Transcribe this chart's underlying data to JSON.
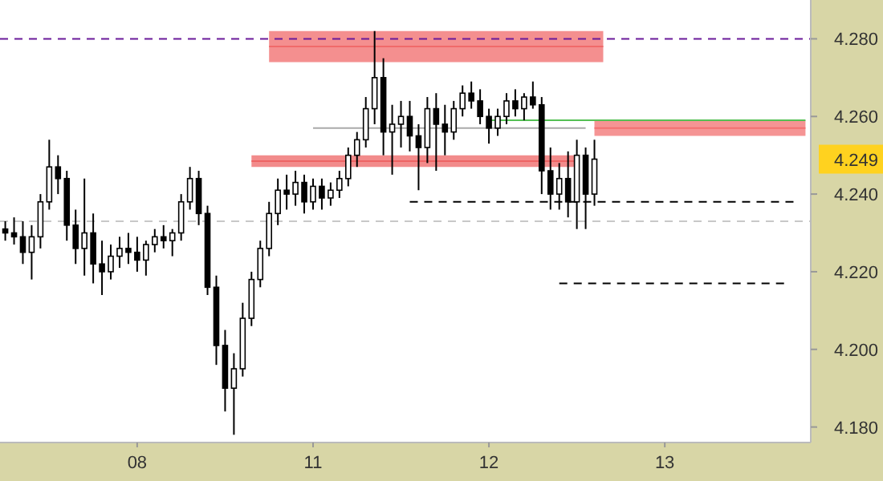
{
  "chart_data": {
    "type": "candlestick",
    "categories": [
      null,
      null,
      null,
      null,
      null,
      null,
      null,
      null,
      null,
      null,
      null,
      null,
      null,
      null,
      null,
      "08",
      null,
      null,
      null,
      null,
      null,
      null,
      null,
      null,
      null,
      null,
      null,
      null,
      null,
      null,
      null,
      null,
      null,
      null,
      null,
      "11",
      null,
      null,
      null,
      null,
      null,
      null,
      null,
      null,
      null,
      null,
      null,
      null,
      null,
      null,
      null,
      null,
      null,
      null,
      null,
      "12",
      null,
      null,
      null,
      null,
      null,
      null,
      null,
      null,
      null,
      null,
      null,
      null,
      null,
      null,
      null,
      null,
      null,
      null,
      null,
      "13",
      null,
      null,
      null,
      null,
      null,
      null,
      null,
      null,
      null,
      null,
      null,
      null,
      null,
      null,
      null,
      null
    ],
    "ohlc": [
      [
        4.231,
        4.233,
        4.228,
        4.23
      ],
      [
        4.23,
        4.234,
        4.227,
        4.229
      ],
      [
        4.229,
        4.233,
        4.222,
        4.225
      ],
      [
        4.225,
        4.232,
        4.218,
        4.229
      ],
      [
        4.229,
        4.24,
        4.226,
        4.238
      ],
      [
        4.238,
        4.254,
        4.236,
        4.247
      ],
      [
        4.247,
        4.25,
        4.24,
        4.244
      ],
      [
        4.244,
        4.246,
        4.228,
        4.232
      ],
      [
        4.232,
        4.236,
        4.222,
        4.226
      ],
      [
        4.226,
        4.244,
        4.219,
        4.23
      ],
      [
        4.23,
        4.235,
        4.217,
        4.222
      ],
      [
        4.222,
        4.228,
        4.214,
        4.22
      ],
      [
        4.22,
        4.227,
        4.218,
        4.224
      ],
      [
        4.224,
        4.229,
        4.221,
        4.226
      ],
      [
        4.226,
        4.23,
        4.222,
        4.225
      ],
      [
        4.225,
        4.229,
        4.22,
        4.223
      ],
      [
        4.223,
        4.228,
        4.219,
        4.227
      ],
      [
        4.227,
        4.231,
        4.225,
        4.229
      ],
      [
        4.229,
        4.232,
        4.226,
        4.228
      ],
      [
        4.228,
        4.231,
        4.224,
        4.23
      ],
      [
        4.23,
        4.24,
        4.228,
        4.238
      ],
      [
        4.238,
        4.247,
        4.236,
        4.244
      ],
      [
        4.244,
        4.246,
        4.232,
        4.235
      ],
      [
        4.235,
        4.237,
        4.214,
        4.216
      ],
      [
        4.216,
        4.219,
        4.196,
        4.201
      ],
      [
        4.201,
        4.205,
        4.184,
        4.19
      ],
      [
        4.19,
        4.199,
        4.178,
        4.195
      ],
      [
        4.195,
        4.212,
        4.193,
        4.208
      ],
      [
        4.208,
        4.22,
        4.206,
        4.218
      ],
      [
        4.218,
        4.228,
        4.216,
        4.226
      ],
      [
        4.226,
        4.238,
        4.224,
        4.235
      ],
      [
        4.235,
        4.244,
        4.232,
        4.241
      ],
      [
        4.241,
        4.245,
        4.236,
        4.24
      ],
      [
        4.24,
        4.246,
        4.237,
        4.243
      ],
      [
        4.243,
        4.245,
        4.235,
        4.238
      ],
      [
        4.238,
        4.244,
        4.236,
        4.242
      ],
      [
        4.242,
        4.244,
        4.236,
        4.239
      ],
      [
        4.239,
        4.243,
        4.237,
        4.241
      ],
      [
        4.241,
        4.246,
        4.239,
        4.244
      ],
      [
        4.244,
        4.252,
        4.242,
        4.25
      ],
      [
        4.25,
        4.256,
        4.247,
        4.254
      ],
      [
        4.254,
        4.265,
        4.252,
        4.262
      ],
      [
        4.262,
        4.282,
        4.258,
        4.27
      ],
      [
        4.27,
        4.275,
        4.25,
        4.256
      ],
      [
        4.256,
        4.263,
        4.245,
        4.258
      ],
      [
        4.258,
        4.264,
        4.252,
        4.26
      ],
      [
        4.26,
        4.264,
        4.251,
        4.255
      ],
      [
        4.255,
        4.258,
        4.241,
        4.252
      ],
      [
        4.252,
        4.265,
        4.248,
        4.262
      ],
      [
        4.262,
        4.266,
        4.246,
        4.258
      ],
      [
        4.258,
        4.263,
        4.25,
        4.256
      ],
      [
        4.256,
        4.264,
        4.254,
        4.262
      ],
      [
        4.262,
        4.268,
        4.26,
        4.266
      ],
      [
        4.266,
        4.269,
        4.262,
        4.264
      ],
      [
        4.264,
        4.267,
        4.258,
        4.26
      ],
      [
        4.26,
        4.262,
        4.253,
        4.257
      ],
      [
        4.257,
        4.262,
        4.255,
        4.26
      ],
      [
        4.26,
        4.266,
        4.258,
        4.264
      ],
      [
        4.264,
        4.267,
        4.26,
        4.262
      ],
      [
        4.262,
        4.266,
        4.259,
        4.265
      ],
      [
        4.265,
        4.269,
        4.262,
        4.263
      ],
      [
        4.263,
        4.265,
        4.24,
        4.246
      ],
      [
        4.246,
        4.252,
        4.236,
        4.24
      ],
      [
        4.24,
        4.248,
        4.236,
        4.244
      ],
      [
        4.244,
        4.251,
        4.234,
        4.238
      ],
      [
        4.238,
        4.254,
        4.231,
        4.25
      ],
      [
        4.25,
        4.252,
        4.231,
        4.24
      ],
      [
        4.24,
        4.254,
        4.237,
        4.249
      ],
      null,
      null,
      null,
      null,
      null,
      null,
      null,
      null,
      null,
      null,
      null,
      null,
      null,
      null,
      null,
      null,
      null,
      null,
      null,
      null,
      null,
      null,
      null,
      null
    ],
    "series": [
      {
        "type": "line",
        "color": "#f06a6a",
        "values": [
          null,
          null,
          null,
          null,
          null,
          null,
          null,
          null,
          null,
          null,
          null,
          null,
          null,
          null,
          null,
          null,
          null,
          null,
          null,
          null,
          null,
          null,
          null,
          null,
          null,
          null,
          null,
          null,
          null,
          null,
          4.278,
          4.278,
          4.278,
          4.278,
          4.278,
          4.278,
          4.278,
          4.278,
          4.278,
          4.278,
          4.278,
          4.278,
          4.278,
          4.278,
          4.278,
          4.278,
          4.278,
          4.278,
          4.278,
          4.278,
          4.278,
          4.278,
          4.278,
          4.278,
          4.278,
          4.278,
          4.278,
          4.278,
          4.278,
          4.278,
          4.278,
          4.278,
          4.278,
          4.278,
          4.278,
          4.278,
          4.278,
          4.278,
          4.278,
          null,
          null,
          null,
          null,
          null,
          null,
          null,
          null,
          null,
          null,
          null,
          null,
          null,
          null,
          null,
          null,
          null,
          null,
          null,
          null,
          null,
          null,
          null
        ],
        "lower": [
          null,
          null,
          null,
          null,
          null,
          null,
          null,
          null,
          null,
          null,
          null,
          null,
          null,
          null,
          null,
          null,
          null,
          null,
          null,
          null,
          null,
          null,
          null,
          null,
          null,
          null,
          null,
          null,
          null,
          null,
          4.274,
          4.274,
          4.274,
          4.274,
          4.274,
          4.274,
          4.274,
          4.274,
          4.274,
          4.274,
          4.274,
          4.274,
          4.274,
          4.274,
          4.274,
          4.274,
          4.274,
          4.274,
          4.274,
          4.274,
          4.274,
          4.274,
          4.274,
          4.274,
          4.274,
          4.274,
          4.274,
          4.274,
          4.274,
          4.274,
          4.274,
          4.274,
          4.274,
          4.274,
          4.274,
          4.274,
          4.274,
          4.274,
          4.274,
          null,
          null,
          null,
          null,
          null,
          null,
          null,
          null,
          null,
          null,
          null,
          null,
          null,
          null,
          null,
          null,
          null,
          null,
          null,
          null,
          null,
          null,
          null
        ],
        "upper": [
          null,
          null,
          null,
          null,
          null,
          null,
          null,
          null,
          null,
          null,
          null,
          null,
          null,
          null,
          null,
          null,
          null,
          null,
          null,
          null,
          null,
          null,
          null,
          null,
          null,
          null,
          null,
          null,
          null,
          null,
          4.282,
          4.282,
          4.282,
          4.282,
          4.282,
          4.282,
          4.282,
          4.282,
          4.282,
          4.282,
          4.282,
          4.282,
          4.282,
          4.282,
          4.282,
          4.282,
          4.282,
          4.282,
          4.282,
          4.282,
          4.282,
          4.282,
          4.282,
          4.282,
          4.282,
          4.282,
          4.282,
          4.282,
          4.282,
          4.282,
          4.282,
          4.282,
          4.282,
          4.282,
          4.282,
          4.282,
          4.282,
          4.282,
          4.282,
          null,
          null,
          null,
          null,
          null,
          null,
          null,
          null,
          null,
          null,
          null,
          null,
          null,
          null,
          null,
          null,
          null,
          null,
          null,
          null,
          null,
          null,
          null
        ]
      },
      {
        "type": "line",
        "color": "#ee6464",
        "values": [
          null,
          null,
          null,
          null,
          null,
          null,
          null,
          null,
          null,
          null,
          null,
          null,
          null,
          null,
          null,
          null,
          null,
          null,
          null,
          null,
          null,
          null,
          null,
          null,
          null,
          null,
          null,
          null,
          4.2485,
          4.2485,
          4.2485,
          4.2485,
          4.2485,
          4.2485,
          4.2485,
          4.2485,
          4.2485,
          4.2485,
          4.2485,
          4.2485,
          4.2485,
          4.2485,
          4.2485,
          4.2485,
          4.2485,
          4.2485,
          4.2485,
          4.2485,
          4.2485,
          4.2485,
          4.2485,
          4.2485,
          4.2485,
          4.2485,
          4.2485,
          4.2485,
          4.2485,
          4.2485,
          4.2485,
          4.2485,
          4.2485,
          4.2485,
          4.2485,
          4.2485,
          4.2485,
          4.2485,
          null,
          null,
          null,
          null,
          null,
          null,
          null,
          null,
          null,
          null,
          null,
          null,
          null,
          null,
          null,
          null,
          null,
          null,
          null,
          null,
          null,
          null,
          null,
          null,
          null,
          null
        ],
        "lower": [
          null,
          null,
          null,
          null,
          null,
          null,
          null,
          null,
          null,
          null,
          null,
          null,
          null,
          null,
          null,
          null,
          null,
          null,
          null,
          null,
          null,
          null,
          null,
          null,
          null,
          null,
          null,
          null,
          4.247,
          4.247,
          4.247,
          4.247,
          4.247,
          4.247,
          4.247,
          4.247,
          4.247,
          4.247,
          4.247,
          4.247,
          4.247,
          4.247,
          4.247,
          4.247,
          4.247,
          4.247,
          4.247,
          4.247,
          4.247,
          4.247,
          4.247,
          4.247,
          4.247,
          4.247,
          4.247,
          4.247,
          4.247,
          4.247,
          4.247,
          4.247,
          4.247,
          4.247,
          4.247,
          4.247,
          4.247,
          4.247,
          null,
          null,
          null,
          null,
          null,
          null,
          null,
          null,
          null,
          null,
          null,
          null,
          null,
          null,
          null,
          null,
          null,
          null,
          null,
          null,
          null,
          null,
          null,
          null,
          null,
          null
        ],
        "upper": [
          null,
          null,
          null,
          null,
          null,
          null,
          null,
          null,
          null,
          null,
          null,
          null,
          null,
          null,
          null,
          null,
          null,
          null,
          null,
          null,
          null,
          null,
          null,
          null,
          null,
          null,
          null,
          null,
          4.25,
          4.25,
          4.25,
          4.25,
          4.25,
          4.25,
          4.25,
          4.25,
          4.25,
          4.25,
          4.25,
          4.25,
          4.25,
          4.25,
          4.25,
          4.25,
          4.25,
          4.25,
          4.25,
          4.25,
          4.25,
          4.25,
          4.25,
          4.25,
          4.25,
          4.25,
          4.25,
          4.25,
          4.25,
          4.25,
          4.25,
          4.25,
          4.25,
          4.25,
          4.25,
          4.25,
          4.25,
          4.25,
          null,
          null,
          null,
          null,
          null,
          null,
          null,
          null,
          null,
          null,
          null,
          null,
          null,
          null,
          null,
          null,
          null,
          null,
          null,
          null,
          null,
          null,
          null,
          null,
          null,
          null
        ]
      },
      {
        "type": "line",
        "color": "#f27070",
        "values": [
          null,
          null,
          null,
          null,
          null,
          null,
          null,
          null,
          null,
          null,
          null,
          null,
          null,
          null,
          null,
          null,
          null,
          null,
          null,
          null,
          null,
          null,
          null,
          null,
          null,
          null,
          null,
          null,
          null,
          null,
          null,
          null,
          null,
          null,
          null,
          null,
          null,
          null,
          null,
          null,
          null,
          null,
          null,
          null,
          null,
          null,
          null,
          null,
          null,
          null,
          null,
          null,
          null,
          null,
          null,
          null,
          null,
          null,
          null,
          null,
          null,
          null,
          null,
          null,
          null,
          null,
          null,
          4.257,
          4.257,
          4.257,
          4.257,
          4.257,
          4.257,
          4.257,
          4.257,
          4.257,
          4.257,
          4.257,
          4.257,
          4.257,
          4.257,
          4.257,
          4.257,
          4.257,
          4.257,
          4.257,
          4.257,
          4.257,
          4.257,
          4.257,
          4.257,
          4.257
        ],
        "lower": [
          null,
          null,
          null,
          null,
          null,
          null,
          null,
          null,
          null,
          null,
          null,
          null,
          null,
          null,
          null,
          null,
          null,
          null,
          null,
          null,
          null,
          null,
          null,
          null,
          null,
          null,
          null,
          null,
          null,
          null,
          null,
          null,
          null,
          null,
          null,
          null,
          null,
          null,
          null,
          null,
          null,
          null,
          null,
          null,
          null,
          null,
          null,
          null,
          null,
          null,
          null,
          null,
          null,
          null,
          null,
          null,
          null,
          null,
          null,
          null,
          null,
          null,
          null,
          null,
          null,
          null,
          null,
          4.255,
          4.255,
          4.255,
          4.255,
          4.255,
          4.255,
          4.255,
          4.255,
          4.255,
          4.255,
          4.255,
          4.255,
          4.255,
          4.255,
          4.255,
          4.255,
          4.255,
          4.255,
          4.255,
          4.255,
          4.255,
          4.255,
          4.255,
          4.255,
          4.255
        ],
        "upper": [
          null,
          null,
          null,
          null,
          null,
          null,
          null,
          null,
          null,
          null,
          null,
          null,
          null,
          null,
          null,
          null,
          null,
          null,
          null,
          null,
          null,
          null,
          null,
          null,
          null,
          null,
          null,
          null,
          null,
          null,
          null,
          null,
          null,
          null,
          null,
          null,
          null,
          null,
          null,
          null,
          null,
          null,
          null,
          null,
          null,
          null,
          null,
          null,
          null,
          null,
          null,
          null,
          null,
          null,
          null,
          null,
          null,
          null,
          null,
          null,
          null,
          null,
          null,
          null,
          null,
          null,
          null,
          4.259,
          4.259,
          4.259,
          4.259,
          4.259,
          4.259,
          4.259,
          4.259,
          4.259,
          4.259,
          4.259,
          4.259,
          4.259,
          4.259,
          4.259,
          4.259,
          4.259,
          4.259,
          4.259,
          4.259,
          4.259,
          4.259,
          4.259,
          4.259,
          4.259
        ]
      },
      {
        "type": "line",
        "color": "#aaaaaa",
        "line_style": "solid",
        "values": [
          null,
          null,
          null,
          null,
          null,
          null,
          null,
          null,
          null,
          null,
          null,
          null,
          null,
          null,
          null,
          null,
          null,
          null,
          null,
          null,
          null,
          null,
          null,
          null,
          null,
          null,
          null,
          null,
          null,
          null,
          null,
          null,
          null,
          null,
          null,
          4.257,
          4.257,
          4.257,
          4.257,
          4.257,
          4.257,
          4.257,
          4.257,
          4.257,
          4.257,
          4.257,
          4.257,
          4.257,
          4.257,
          4.257,
          4.257,
          4.257,
          4.257,
          4.257,
          4.257,
          4.257,
          4.257,
          4.257,
          4.257,
          4.257,
          4.257,
          4.257,
          4.257,
          4.257,
          4.257,
          4.257,
          4.257,
          null,
          null,
          null,
          null,
          null,
          null,
          null,
          null,
          null,
          null,
          null,
          null,
          null,
          null,
          null,
          null,
          null,
          null,
          null,
          null,
          null,
          null,
          null,
          null,
          null
        ]
      },
      {
        "type": "line",
        "color": "#55c055",
        "line_style": "solid",
        "values": [
          null,
          null,
          null,
          null,
          null,
          null,
          null,
          null,
          null,
          null,
          null,
          null,
          null,
          null,
          null,
          null,
          null,
          null,
          null,
          null,
          null,
          null,
          null,
          null,
          null,
          null,
          null,
          null,
          null,
          null,
          null,
          null,
          null,
          null,
          null,
          null,
          null,
          null,
          null,
          null,
          null,
          null,
          null,
          null,
          null,
          null,
          null,
          null,
          null,
          null,
          null,
          null,
          null,
          null,
          null,
          4.259,
          4.259,
          4.259,
          4.259,
          4.259,
          4.259,
          4.259,
          4.259,
          4.259,
          4.259,
          4.259,
          4.259,
          4.259,
          4.259,
          4.259,
          4.259,
          4.259,
          4.259,
          4.259,
          4.259,
          4.259,
          4.259,
          4.259,
          4.259,
          4.259,
          4.259,
          4.259,
          4.259,
          4.259,
          4.259,
          4.259,
          4.259,
          4.259,
          4.259,
          4.259,
          4.259,
          4.259
        ]
      },
      {
        "type": "line",
        "color": "#000000",
        "line_style": "dashed",
        "values": [
          null,
          null,
          null,
          null,
          null,
          null,
          null,
          null,
          null,
          null,
          null,
          null,
          null,
          null,
          null,
          null,
          null,
          null,
          null,
          null,
          null,
          null,
          null,
          null,
          null,
          null,
          null,
          null,
          null,
          null,
          null,
          null,
          null,
          null,
          null,
          null,
          null,
          null,
          null,
          null,
          null,
          null,
          null,
          null,
          null,
          null,
          4.238,
          4.238,
          4.238,
          4.238,
          4.238,
          4.238,
          4.238,
          4.238,
          4.238,
          4.238,
          4.238,
          4.238,
          4.238,
          4.238,
          4.238,
          4.238,
          4.238,
          4.238,
          4.238,
          4.238,
          4.238,
          4.238,
          4.238,
          4.238,
          4.238,
          4.238,
          4.238,
          4.238,
          4.238,
          4.238,
          4.238,
          4.238,
          4.238,
          4.238,
          4.238,
          4.238,
          4.238,
          4.238,
          4.238,
          4.238,
          4.238,
          4.238,
          4.238,
          4.238,
          4.238,
          null
        ]
      },
      {
        "type": "line",
        "color": "#000000",
        "line_style": "dashed",
        "values": [
          null,
          null,
          null,
          null,
          null,
          null,
          null,
          null,
          null,
          null,
          null,
          null,
          null,
          null,
          null,
          null,
          null,
          null,
          null,
          null,
          null,
          null,
          null,
          null,
          null,
          null,
          null,
          null,
          null,
          null,
          null,
          null,
          null,
          null,
          null,
          null,
          null,
          null,
          null,
          null,
          null,
          null,
          null,
          null,
          null,
          null,
          null,
          null,
          null,
          null,
          null,
          null,
          null,
          null,
          null,
          null,
          null,
          null,
          null,
          null,
          null,
          null,
          null,
          4.217,
          4.217,
          4.217,
          4.217,
          4.217,
          4.217,
          4.217,
          4.217,
          4.217,
          4.217,
          4.217,
          4.217,
          4.217,
          4.217,
          4.217,
          4.217,
          4.217,
          4.217,
          4.217,
          4.217,
          4.217,
          4.217,
          4.217,
          4.217,
          4.217,
          4.217,
          4.217,
          null,
          null
        ]
      }
    ],
    "ref_lines": [
      {
        "axis": "y",
        "value": 4.28,
        "color": "#6a1b9a",
        "line_style": "dashed"
      },
      {
        "axis": "y",
        "value": 4.233,
        "color": "#c8c8c8",
        "line_style": "dashed"
      }
    ],
    "annotations": [
      "4.249"
    ],
    "ylim": [
      4.176,
      4.29
    ],
    "yticks": [
      {
        "value": 4.18,
        "label": "4.180"
      },
      {
        "value": 4.2,
        "label": "4.200"
      },
      {
        "value": 4.22,
        "label": "4.220"
      },
      {
        "value": 4.24,
        "label": "4.240"
      },
      {
        "value": 4.26,
        "label": "4.260"
      },
      {
        "value": 4.28,
        "label": "4.280"
      }
    ],
    "grid": false
  }
}
